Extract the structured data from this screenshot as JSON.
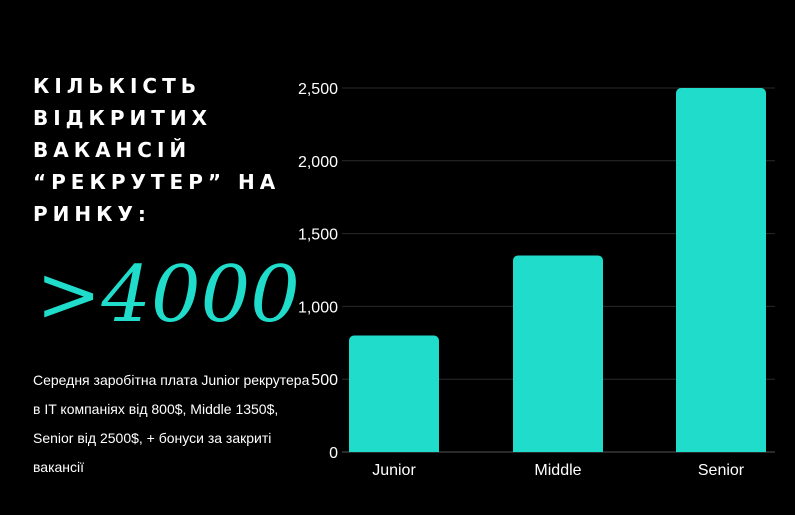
{
  "headline": {
    "title": "КІЛЬКІСТЬ ВІДКРИТИХ ВАКАНСІЙ “РЕКРУТЕР” НА РИНКУ:",
    "big_number": ">4000",
    "description": "Середня заробітна плата Junior рекрутера в IT компаніях від 800$, Middle  1350$, Senior від 2500$, + бонуси за закриті вакансії"
  },
  "colors": {
    "accent": "#1fdccb",
    "background": "#000000",
    "grid": "#2a2a2a"
  },
  "chart_data": {
    "type": "bar",
    "categories": [
      "Junior",
      "Middle",
      "Senior"
    ],
    "values": [
      800,
      1350,
      2500
    ],
    "yticks": [
      "0",
      "500",
      "1,000",
      "1,500",
      "2,000",
      "2,500"
    ],
    "ylim": [
      0,
      2500
    ],
    "grid": true,
    "legend": "none"
  }
}
